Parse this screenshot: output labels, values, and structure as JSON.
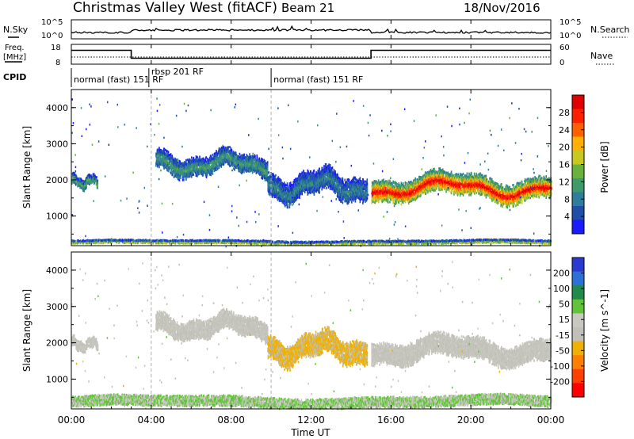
{
  "header": {
    "station": "Christmas Valley West (fitACF)",
    "beam": "Beam 21",
    "date": "18/Nov/2016"
  },
  "strip_labels": {
    "nsky": "N.Sky",
    "nsky_tick_top": "10^5",
    "nsky_tick_bottom": "10^0",
    "nsearch": "N.Search",
    "nsearch_tick_top": "10^5",
    "nsearch_tick_bottom": "10^0",
    "freq": "Freq.",
    "freq_unit": "[MHz]",
    "freq_tick_top": "18",
    "freq_tick_bottom": "8",
    "nave": "Nave",
    "nave_tick_top": "60",
    "nave_tick_bottom": "0",
    "cpid": "CPID"
  },
  "cpid_segments": [
    {
      "label": "normal (fast) 151 RF",
      "start_h": 0.0
    },
    {
      "label": "rbsp 201 RF",
      "start_h": 4.0
    },
    {
      "label": "normal (fast) 151 RF",
      "start_h": 10.0
    }
  ],
  "freq_trace": [
    {
      "t": 0.0,
      "freq": 15.0
    },
    {
      "t": 3.0,
      "freq": 15.0
    },
    {
      "t": 3.0,
      "freq": 11.0
    },
    {
      "t": 15.0,
      "freq": 11.0
    },
    {
      "t": 15.0,
      "freq": 15.0
    },
    {
      "t": 24.0,
      "freq": 15.0
    }
  ],
  "chart_data": [
    {
      "type": "heatmap",
      "panel": "power",
      "ylabel": "Slant Range [km]",
      "ylim": [
        180,
        4500
      ],
      "xlim": [
        0,
        24
      ],
      "yticks": [
        "1000",
        "2000",
        "3000",
        "4000"
      ],
      "colorbar": {
        "label": "Power [dB]",
        "range": [
          0,
          32
        ],
        "ticks": [
          "4",
          "8",
          "12",
          "16",
          "20",
          "24",
          "28"
        ],
        "colors": [
          "#1a1aff",
          "#1f4fa8",
          "#2e7d9a",
          "#3f9a6a",
          "#6ab23e",
          "#c8c820",
          "#ffb000",
          "#ff6000",
          "#ff2000",
          "#e00000"
        ]
      },
      "echo_bands": [
        {
          "t0": 0.0,
          "t1": 24.0,
          "r0": 220,
          "r1": 340,
          "value": 12
        },
        {
          "t0": 0.0,
          "t1": 1.3,
          "r0": 1700,
          "r1": 2200,
          "value": 10
        },
        {
          "t0": 4.2,
          "t1": 9.8,
          "r0": 2000,
          "r1": 2900,
          "value": 9
        },
        {
          "t0": 9.8,
          "t1": 14.8,
          "r0": 1300,
          "r1": 2400,
          "value": 7
        },
        {
          "t0": 15.0,
          "t1": 24.0,
          "r0": 1300,
          "r1": 2300,
          "value": 24
        }
      ]
    },
    {
      "type": "heatmap",
      "panel": "velocity",
      "ylabel": "Slant Range [km]",
      "xlabel": "Time UT",
      "ylim": [
        180,
        4500
      ],
      "xlim": [
        0,
        24
      ],
      "yticks": [
        "1000",
        "2000",
        "3000",
        "4000"
      ],
      "xticks": [
        "00:00",
        "04:00",
        "08:00",
        "12:00",
        "16:00",
        "20:00",
        "00:00"
      ],
      "colorbar": {
        "label": "Velocity [m s^-1]",
        "range": [
          -250,
          250
        ],
        "ticks": [
          "200",
          "100",
          "50",
          "15",
          "-15",
          "-50",
          "-100",
          "-200"
        ],
        "colors": [
          "#2a3ad0",
          "#2d6fd8",
          "#1f8a4a",
          "#62c23a",
          "#c8c8c0",
          "#c0c0b8",
          "#f0b000",
          "#ff8000",
          "#ff4000",
          "#ff0000"
        ]
      },
      "echo_bands": [
        {
          "t0": 0.0,
          "t1": 24.0,
          "r0": 220,
          "r1": 520,
          "value": -50
        },
        {
          "t0": 0.0,
          "t1": 1.3,
          "r0": 1700,
          "r1": 2200,
          "value": 0
        },
        {
          "t0": 4.2,
          "t1": 9.8,
          "r0": 2000,
          "r1": 2900,
          "value": 0
        },
        {
          "t0": 9.8,
          "t1": 14.8,
          "r0": 1300,
          "r1": 2400,
          "value": 60
        },
        {
          "t0": 15.0,
          "t1": 24.0,
          "r0": 1300,
          "r1": 2300,
          "value": 0
        }
      ]
    }
  ]
}
